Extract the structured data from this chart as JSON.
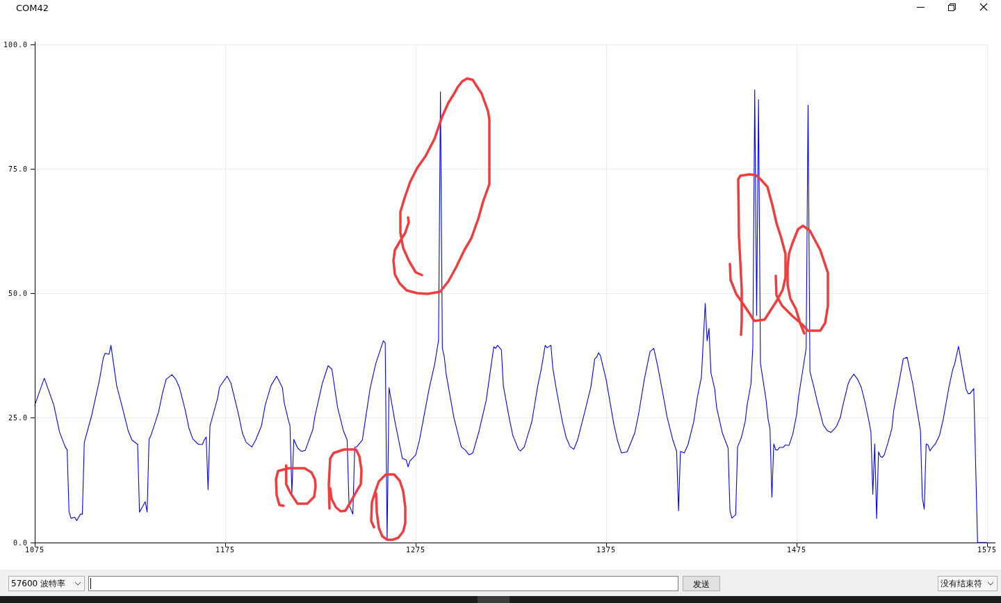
{
  "chart_data": {
    "type": "line",
    "title": "COM42",
    "x": [
      1075,
      1080,
      1085,
      1088,
      1091,
      1092,
      1093,
      1094,
      1096,
      1097,
      1099,
      1100,
      1101,
      1105,
      1109,
      1111,
      1112,
      1114,
      1115,
      1116,
      1118,
      1121,
      1124,
      1126,
      1129,
      1130,
      1133,
      1134,
      1135,
      1136,
      1140,
      1142,
      1144,
      1147,
      1149,
      1151,
      1154,
      1156,
      1158,
      1161,
      1163,
      1164,
      1165,
      1166,
      1167,
      1168,
      1171,
      1172,
      1176,
      1178,
      1182,
      1184,
      1186,
      1189,
      1191,
      1194,
      1196,
      1199,
      1202,
      1205,
      1206,
      1208,
      1209,
      1210,
      1211,
      1213,
      1215,
      1217,
      1221,
      1222,
      1226,
      1229,
      1231,
      1234,
      1237,
      1239,
      1240,
      1242,
      1243,
      1244,
      1247,
      1251,
      1254,
      1258,
      1259,
      1260,
      1261,
      1264,
      1268,
      1270,
      1271,
      1272,
      1275,
      1277,
      1282,
      1285,
      1287,
      1288,
      1289,
      1290,
      1291,
      1295,
      1298,
      1299,
      1301,
      1303,
      1305,
      1308,
      1312,
      1316,
      1317,
      1318,
      1320,
      1321,
      1324,
      1326,
      1329,
      1330,
      1332,
      1336,
      1339,
      1341,
      1343,
      1344,
      1346,
      1347,
      1349,
      1352,
      1354,
      1356,
      1358,
      1360,
      1364,
      1367,
      1369,
      1370,
      1371,
      1372,
      1375,
      1379,
      1381,
      1383,
      1386,
      1390,
      1392,
      1395,
      1398,
      1400,
      1402,
      1405,
      1407,
      1410,
      1412,
      1413,
      1414,
      1416,
      1418,
      1421,
      1423,
      1425,
      1427,
      1428,
      1429,
      1430,
      1432,
      1433,
      1436,
      1439,
      1440,
      1441,
      1443,
      1444,
      1446,
      1448,
      1449,
      1451,
      1452,
      1453,
      1454,
      1455,
      1456,
      1459,
      1460,
      1461,
      1462,
      1463,
      1464,
      1465,
      1466,
      1468,
      1469,
      1471,
      1473,
      1475,
      1476,
      1478,
      1480,
      1481,
      1482,
      1484,
      1486,
      1487,
      1489,
      1491,
      1493,
      1495,
      1496,
      1498,
      1499,
      1502,
      1503,
      1505,
      1507,
      1509,
      1511,
      1513,
      1514,
      1515,
      1516,
      1517,
      1518,
      1519,
      1520,
      1521,
      1523,
      1525,
      1526,
      1529,
      1531,
      1533,
      1536,
      1538,
      1540,
      1541,
      1542,
      1543,
      1544,
      1545,
      1546,
      1548,
      1550,
      1552,
      1555,
      1557,
      1558,
      1560,
      1562,
      1564,
      1565,
      1566,
      1568,
      1570,
      1575
    ],
    "values": [
      27.6,
      33.0,
      27.6,
      22.2,
      19.2,
      18.6,
      6.2,
      4.9,
      5.1,
      4.4,
      5.7,
      5.7,
      20.1,
      25.7,
      32.7,
      37.1,
      38.0,
      37.8,
      39.6,
      36.9,
      31.5,
      27.1,
      22.5,
      20.6,
      19.7,
      6.1,
      8.2,
      6.1,
      20.7,
      21.5,
      26.2,
      29.9,
      32.8,
      33.7,
      32.8,
      31.1,
      26.6,
      22.9,
      20.8,
      19.7,
      19.7,
      20.6,
      21.2,
      10.6,
      23.4,
      24.8,
      29.0,
      31.2,
      33.4,
      32.0,
      25.7,
      22.0,
      20.1,
      19.2,
      20.6,
      23.4,
      27.6,
      31.5,
      33.4,
      31.1,
      28.0,
      24.8,
      23.4,
      9.9,
      20.7,
      19.0,
      18.3,
      18.5,
      22.7,
      25.2,
      32.0,
      35.5,
      34.8,
      27.1,
      22.5,
      20.6,
      7.6,
      5.7,
      19.1,
      19.2,
      20.6,
      30.8,
      35.9,
      40.5,
      40.1,
      0.5,
      31.1,
      24.5,
      16.9,
      16.6,
      15.2,
      16.4,
      17.6,
      20.6,
      30.8,
      35.9,
      40.6,
      90.5,
      39.0,
      37.3,
      33.8,
      25.2,
      20.6,
      19.2,
      18.6,
      17.6,
      18.0,
      22.0,
      28.5,
      39.3,
      39.0,
      39.6,
      38.7,
      31.5,
      25.2,
      21.5,
      18.7,
      18.4,
      19.2,
      24.3,
      31.3,
      35.0,
      39.6,
      39.1,
      39.6,
      35.0,
      30.4,
      24.3,
      21.1,
      19.3,
      18.7,
      20.6,
      26.6,
      31.3,
      36.9,
      37.2,
      38.1,
      37.5,
      32.7,
      23.8,
      20.4,
      18.0,
      18.2,
      22.0,
      25.7,
      32.7,
      38.3,
      39.0,
      35.5,
      29.4,
      25.2,
      20.6,
      18.3,
      6.4,
      18.3,
      18.0,
      19.7,
      24.3,
      29.4,
      33.2,
      48.0,
      40.5,
      43.0,
      34.1,
      30.8,
      27.1,
      22.0,
      19.0,
      6.4,
      4.9,
      5.6,
      19.2,
      21.1,
      24.3,
      27.6,
      31.8,
      39.3,
      90.9,
      45.6,
      88.9,
      36.0,
      28.5,
      24.8,
      22.9,
      9.1,
      19.8,
      18.6,
      18.6,
      19.1,
      19.1,
      19.6,
      19.5,
      21.8,
      25.7,
      29.2,
      34.1,
      39.0,
      87.8,
      34.3,
      31.3,
      28.0,
      26.6,
      23.6,
      22.5,
      22.1,
      22.9,
      23.4,
      25.2,
      27.1,
      31.8,
      32.7,
      33.8,
      32.8,
      31.1,
      28.0,
      24.3,
      22.2,
      9.7,
      19.8,
      4.8,
      18.2,
      17.3,
      17.1,
      17.6,
      20.1,
      22.9,
      26.6,
      32.7,
      36.9,
      37.2,
      31.8,
      27.1,
      22.5,
      9.0,
      6.7,
      19.8,
      19.6,
      18.4,
      19.0,
      19.9,
      21.5,
      24.8,
      31.3,
      34.8,
      35.9,
      39.4,
      35.0,
      30.8,
      29.9,
      29.9,
      30.9,
      0,
      0
    ],
    "color": "#0000ff",
    "xlim": [
      1075,
      1575
    ],
    "ylim": [
      0,
      100
    ],
    "xticks": [
      1075,
      1175,
      1275,
      1375,
      1475,
      1575
    ],
    "yticks": [
      {
        "value": 0,
        "label": "0.0"
      },
      {
        "value": 25,
        "label": "25.0"
      },
      {
        "value": 50,
        "label": "50.0"
      },
      {
        "value": 75,
        "label": "75.0"
      },
      {
        "value": 100,
        "label": "100.0"
      }
    ],
    "grid": true,
    "annotations": [
      "57600 波特率",
      "发送",
      "没有结束符"
    ]
  }
}
